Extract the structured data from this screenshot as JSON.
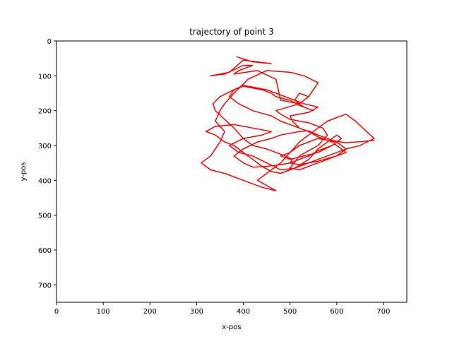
{
  "chart_data": {
    "type": "line",
    "title": "trajectory of point 3",
    "xlabel": "x-pos",
    "ylabel": "y-pos",
    "xlim": [
      0,
      750
    ],
    "ylim": [
      750,
      0
    ],
    "y_inverted": true,
    "grid": false,
    "xticks": [
      0,
      100,
      200,
      300,
      400,
      500,
      600,
      700
    ],
    "yticks": [
      0,
      100,
      200,
      300,
      400,
      500,
      600,
      700
    ],
    "series": [
      {
        "color": "#ff0000",
        "x": [
          385,
          420,
          460,
          400,
          370,
          330,
          360,
          400,
          420,
          390,
          380,
          430,
          470,
          480,
          520,
          540,
          560,
          530,
          500,
          450,
          410,
          380,
          360,
          350,
          340,
          360,
          350,
          330,
          310,
          330,
          360,
          400,
          440,
          470,
          430,
          450,
          480,
          500,
          520,
          540,
          560,
          580,
          600,
          620,
          640,
          680,
          650,
          620,
          600,
          580,
          560,
          540,
          520,
          500,
          480,
          460,
          440,
          420,
          400,
          380,
          360,
          340,
          320,
          340,
          380,
          420,
          460,
          440,
          400,
          370,
          390,
          420,
          450,
          480,
          510,
          540,
          560,
          580,
          600,
          610,
          590,
          560,
          530,
          500,
          480,
          500,
          520,
          560,
          600,
          620,
          600,
          570,
          540,
          520,
          500,
          520,
          560,
          580,
          570,
          540,
          500,
          480,
          470,
          520,
          540,
          520,
          510,
          530,
          550,
          520,
          500,
          470,
          460,
          440,
          420,
          400,
          380,
          370,
          390,
          420,
          460,
          480,
          500,
          520,
          540,
          570,
          600,
          590,
          560,
          540,
          520,
          500,
          520,
          560,
          600,
          620,
          610,
          590,
          560,
          540,
          520,
          505,
          500,
          540,
          560,
          530,
          510,
          490,
          470,
          450,
          430,
          410,
          400,
          380,
          350,
          335,
          340,
          360,
          380,
          400,
          420,
          450,
          470,
          490,
          505,
          500,
          480,
          450,
          420,
          400,
          380,
          400,
          430,
          460,
          480,
          500,
          520,
          540,
          560,
          580,
          590,
          600,
          610,
          620,
          640,
          660,
          680
        ],
        "y": [
          45,
          60,
          65,
          55,
          90,
          100,
          95,
          70,
          70,
          85,
          95,
          85,
          110,
          170,
          180,
          160,
          120,
          100,
          90,
          85,
          110,
          150,
          180,
          200,
          230,
          260,
          290,
          330,
          350,
          370,
          380,
          400,
          420,
          430,
          400,
          380,
          350,
          320,
          290,
          270,
          250,
          230,
          220,
          210,
          230,
          280,
          300,
          310,
          320,
          330,
          340,
          350,
          360,
          370,
          380,
          375,
          360,
          340,
          320,
          300,
          290,
          270,
          260,
          245,
          240,
          250,
          260,
          270,
          280,
          300,
          320,
          330,
          350,
          370,
          365,
          340,
          310,
          290,
          270,
          280,
          300,
          320,
          330,
          340,
          330,
          320,
          300,
          280,
          290,
          310,
          330,
          345,
          360,
          370,
          365,
          330,
          300,
          270,
          250,
          235,
          225,
          210,
          200,
          180,
          160,
          150,
          170,
          190,
          200,
          185,
          170,
          160,
          150,
          140,
          135,
          130,
          140,
          160,
          180,
          200,
          215,
          230,
          240,
          250,
          260,
          275,
          290,
          300,
          315,
          330,
          340,
          350,
          355,
          345,
          330,
          320,
          310,
          290,
          275,
          260,
          250,
          230,
          215,
          205,
          190,
          180,
          170,
          160,
          150,
          140,
          135,
          130,
          128,
          140,
          160,
          180,
          200,
          225,
          250,
          280,
          300,
          310,
          320,
          330,
          340,
          350,
          355,
          360,
          362,
          350,
          330,
          310,
          290,
          280,
          270,
          265,
          260,
          258,
          270,
          280,
          285,
          288,
          290,
          292,
          290,
          288,
          285
        ]
      }
    ]
  }
}
